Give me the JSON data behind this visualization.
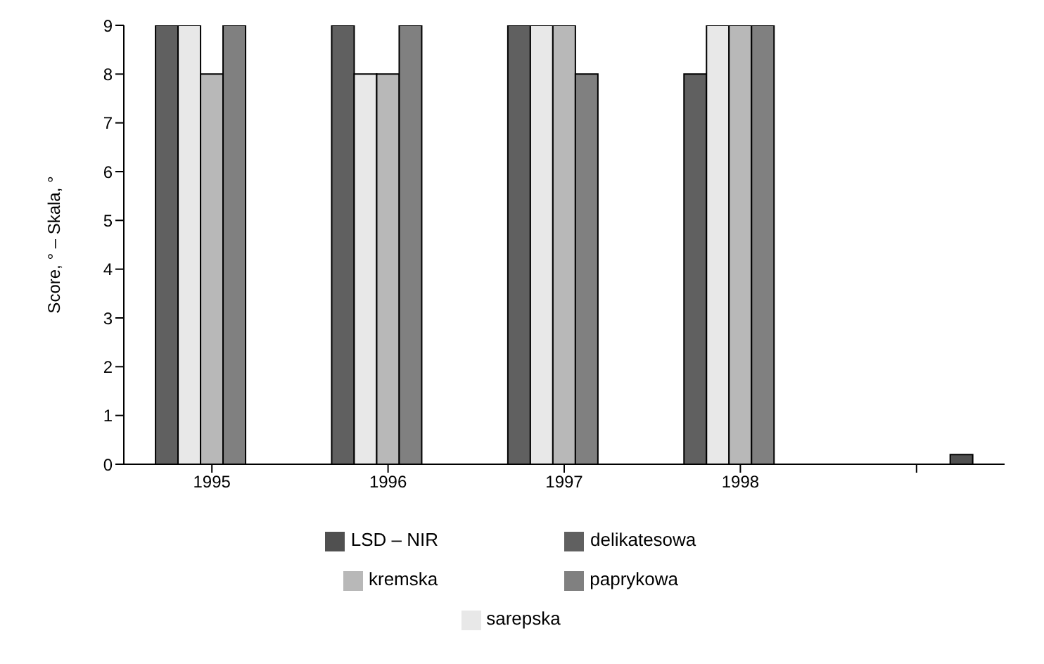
{
  "chart_data": {
    "type": "bar",
    "ylabel": "Score, ° – Skala, °",
    "categories": [
      "1995",
      "1996",
      "1997",
      "1998",
      null
    ],
    "series": [
      {
        "name": "delikatesowa",
        "color": "#606060",
        "values": [
          9,
          9,
          9,
          8,
          null
        ]
      },
      {
        "name": "sarepska",
        "color": "#e8e8e8",
        "values": [
          9,
          8,
          9,
          9,
          null
        ]
      },
      {
        "name": "kremska",
        "color": "#b8b8b8",
        "values": [
          8,
          8,
          9,
          9,
          null
        ]
      },
      {
        "name": "paprykowa",
        "color": "#808080",
        "values": [
          9,
          9,
          8,
          9,
          null
        ]
      },
      {
        "name": "LSD – NIR",
        "color": "#505050",
        "values": [
          null,
          null,
          null,
          null,
          0.2
        ]
      }
    ],
    "ylim": [
      0,
      9
    ],
    "yticks": [
      0,
      1,
      2,
      3,
      4,
      5,
      6,
      7,
      8,
      9
    ],
    "grid": false,
    "legend": "bottom"
  }
}
